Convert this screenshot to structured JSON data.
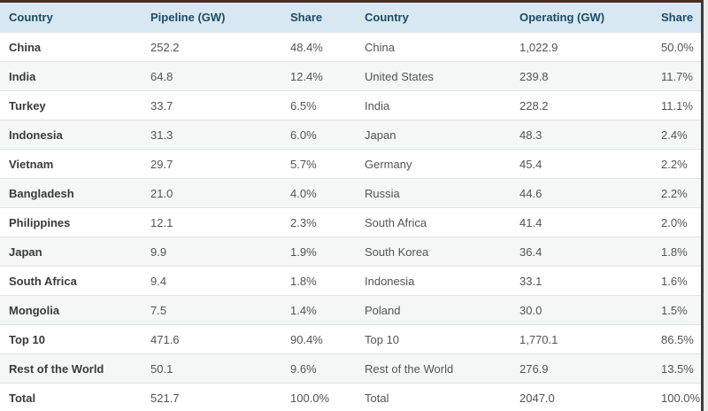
{
  "colors": {
    "top_border": "#4c2b24",
    "header_bg": "#d8e8f3",
    "header_text": "#1d4a63",
    "cell_text": "#545454",
    "row_alt_bg": "#f5f6f6",
    "bottom_border": "#6f6a66",
    "page_bg": "#f2f1ef",
    "right_edge_line": "#3d3c3a"
  },
  "chart_data": {
    "type": "table",
    "headers": [
      "Country",
      "Pipeline (GW)",
      "Share",
      "Country",
      "Operating (GW)",
      "Share"
    ],
    "rows": [
      [
        "China",
        "252.2",
        "48.4%",
        "China",
        "1,022.9",
        "50.0%"
      ],
      [
        "India",
        "64.8",
        "12.4%",
        "United States",
        "239.8",
        "11.7%"
      ],
      [
        "Turkey",
        "33.7",
        "6.5%",
        "India",
        "228.2",
        "11.1%"
      ],
      [
        "Indonesia",
        "31.3",
        "6.0%",
        "Japan",
        "48.3",
        "2.4%"
      ],
      [
        "Vietnam",
        "29.7",
        "5.7%",
        "Germany",
        "45.4",
        "2.2%"
      ],
      [
        "Bangladesh",
        "21.0",
        "4.0%",
        "Russia",
        "44.6",
        "2.2%"
      ],
      [
        "Philippines",
        "12.1",
        "2.3%",
        "South Africa",
        "41.4",
        "2.0%"
      ],
      [
        "Japan",
        "9.9",
        "1.9%",
        "South Korea",
        "36.4",
        "1.8%"
      ],
      [
        "South Africa",
        "9.4",
        "1.8%",
        "Indonesia",
        "33.1",
        "1.6%"
      ],
      [
        "Mongolia",
        "7.5",
        "1.4%",
        "Poland",
        "30.0",
        "1.5%"
      ],
      [
        "Top 10",
        "471.6",
        "90.4%",
        "Top 10",
        "1,770.1",
        "86.5%"
      ],
      [
        "Rest of the World",
        "50.1",
        "9.6%",
        "Rest of the World",
        "276.9",
        "13.5%"
      ],
      [
        "Total",
        "521.7",
        "100.0%",
        "Total",
        "2047.0",
        "100.0%"
      ]
    ]
  }
}
